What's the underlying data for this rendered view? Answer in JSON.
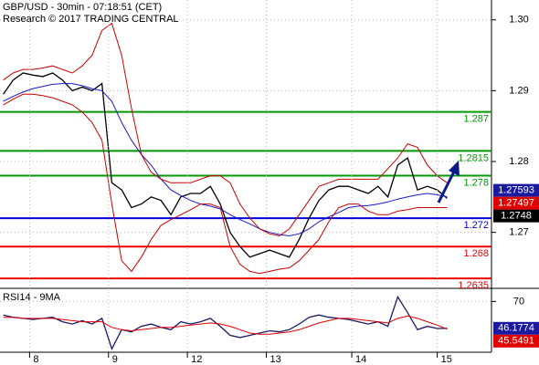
{
  "chart_data": [
    {
      "type": "line",
      "title": "GBP/USD - 30min - 07:18:51 (CET)",
      "subtitle": "Research © 2017 TRADING CENTRAL",
      "x": [
        0,
        6,
        12,
        18,
        24,
        30,
        36,
        42,
        48,
        54,
        60,
        66,
        72,
        78,
        84,
        90,
        96,
        102,
        108,
        114,
        120,
        126,
        132,
        138,
        144,
        150,
        156,
        162,
        168,
        174,
        180,
        186,
        192,
        198,
        204,
        210,
        216,
        222,
        228,
        234,
        240,
        246,
        252,
        258,
        264,
        270
      ],
      "xlim": [
        -2,
        297
      ],
      "ylim": [
        1.2621,
        1.3028
      ],
      "yticks": [
        {
          "value": 1.3,
          "label": "1.30"
        },
        1.29,
        1.28,
        1.27
      ],
      "grid": true,
      "series": [
        {
          "color": "#000000",
          "values": [
            1.2895,
            1.2915,
            1.2925,
            1.2922,
            1.292,
            1.2925,
            1.2915,
            1.29,
            1.2905,
            1.29,
            1.291,
            1.277,
            1.276,
            1.2735,
            1.274,
            1.275,
            1.2745,
            1.2725,
            1.275,
            1.2755,
            1.2755,
            1.2765,
            1.274,
            1.27,
            1.268,
            1.2665,
            1.267,
            1.2675,
            1.267,
            1.2665,
            1.269,
            1.272,
            1.2745,
            1.276,
            1.2765,
            1.2765,
            1.276,
            1.2755,
            1.2765,
            1.275,
            1.2795,
            1.2805,
            1.276,
            1.2765,
            1.276,
            1.2748
          ]
        },
        {
          "color": "#1a1acc",
          "values": [
            1.2885,
            1.2892,
            1.2898,
            1.2903,
            1.2906,
            1.2909,
            1.291,
            1.291,
            1.2907,
            1.2903,
            1.29,
            1.2885,
            1.2855,
            1.283,
            1.281,
            1.2795,
            1.2775,
            1.276,
            1.2752,
            1.2745,
            1.274,
            1.2737,
            1.2733,
            1.2725,
            1.2718,
            1.2712,
            1.2705,
            1.27,
            1.2697,
            1.2695,
            1.2698,
            1.2705,
            1.2715,
            1.2722,
            1.2728,
            1.2735,
            1.2737,
            1.2738,
            1.274,
            1.2743,
            1.2747,
            1.275,
            1.2753,
            1.2755,
            1.2753,
            1.275
          ]
        },
        {
          "color": "#cc0000",
          "values": [
            1.2915,
            1.2925,
            1.293,
            1.293,
            1.2932,
            1.2935,
            1.293,
            1.2925,
            1.2935,
            1.295,
            1.2985,
            1.2995,
            1.295,
            1.2875,
            1.281,
            1.2785,
            1.2775,
            1.277,
            1.277,
            1.277,
            1.2775,
            1.278,
            1.278,
            1.277,
            1.274,
            1.272,
            1.2705,
            1.2698,
            1.2695,
            1.2705,
            1.2725,
            1.2745,
            1.2765,
            1.277,
            1.2775,
            1.2775,
            1.2775,
            1.2775,
            1.2775,
            1.279,
            1.2805,
            1.2825,
            1.282,
            1.2795,
            1.278,
            1.277
          ]
        },
        {
          "color": "#cc0000",
          "values": [
            1.288,
            1.2888,
            1.2895,
            1.2895,
            1.2893,
            1.289,
            1.2885,
            1.288,
            1.287,
            1.2855,
            1.283,
            1.274,
            1.266,
            1.2645,
            1.2665,
            1.269,
            1.271,
            1.2718,
            1.2725,
            1.2732,
            1.274,
            1.274,
            1.2735,
            1.268,
            1.2655,
            1.2645,
            1.2642,
            1.2645,
            1.2648,
            1.265,
            1.266,
            1.2675,
            1.269,
            1.2715,
            1.2735,
            1.274,
            1.274,
            1.273,
            1.2725,
            1.2725,
            1.273,
            1.2732,
            1.2735,
            1.2735,
            1.2735,
            1.2735
          ]
        }
      ],
      "levels": [
        {
          "value": 1.287,
          "color": "#009900"
        },
        {
          "value": 1.2815,
          "color": "#009900"
        },
        {
          "value": 1.278,
          "color": "#009900"
        },
        {
          "value": 1.272,
          "color": "#0000dd"
        },
        {
          "value": 1.268,
          "color": "#ee0000"
        },
        {
          "value": 1.2635,
          "color": "#ee0000"
        }
      ],
      "markers": [
        {
          "value": 1.27593,
          "color": "#1a1aa0"
        },
        {
          "value": 1.27497,
          "color": "#e00000"
        },
        {
          "value": 1.2748,
          "color": "#000000"
        }
      ]
    },
    {
      "type": "line",
      "title": "RSI14 - 9MA",
      "x": [
        0,
        6,
        12,
        18,
        24,
        30,
        36,
        42,
        48,
        54,
        60,
        66,
        72,
        78,
        84,
        90,
        96,
        102,
        108,
        114,
        120,
        126,
        132,
        138,
        144,
        150,
        156,
        162,
        168,
        174,
        180,
        186,
        192,
        198,
        204,
        210,
        216,
        222,
        228,
        234,
        240,
        246,
        252,
        258,
        264,
        270
      ],
      "xlim": [
        -2,
        297
      ],
      "xticks": [
        {
          "value": 16,
          "label": "8"
        },
        {
          "value": 64,
          "label": "9"
        },
        {
          "value": 112,
          "label": "12"
        },
        {
          "value": 160,
          "label": "13"
        },
        {
          "value": 212,
          "label": "14"
        },
        {
          "value": 264,
          "label": "15"
        }
      ],
      "ylim": [
        25,
        80
      ],
      "yticks": [
        70
      ],
      "series": [
        {
          "color": "#1a1a66",
          "values": [
            58,
            56,
            55,
            54,
            55,
            56,
            52,
            50,
            53,
            50,
            55,
            28,
            45,
            43,
            48,
            50,
            47,
            45,
            52,
            50,
            52,
            55,
            48,
            40,
            38,
            40,
            42,
            44,
            43,
            45,
            50,
            56,
            58,
            56,
            55,
            54,
            52,
            50,
            52,
            48,
            74,
            60,
            45,
            48,
            46,
            46.1774
          ]
        },
        {
          "color": "#dd0000",
          "values": [
            56,
            56,
            55,
            55,
            55,
            55,
            54,
            53,
            52,
            52,
            52,
            47,
            45,
            44,
            45,
            46,
            47,
            47,
            48,
            49,
            50,
            51,
            50,
            48,
            45,
            42,
            41,
            41,
            42,
            43,
            45,
            48,
            51,
            53,
            55,
            55,
            54,
            53,
            52,
            51,
            55,
            57,
            55,
            52,
            49,
            45.5491
          ]
        }
      ],
      "markers": [
        {
          "value": 46.1774,
          "color": "#1a1aa0"
        },
        {
          "value": 45.5491,
          "color": "#e00000"
        }
      ]
    }
  ]
}
